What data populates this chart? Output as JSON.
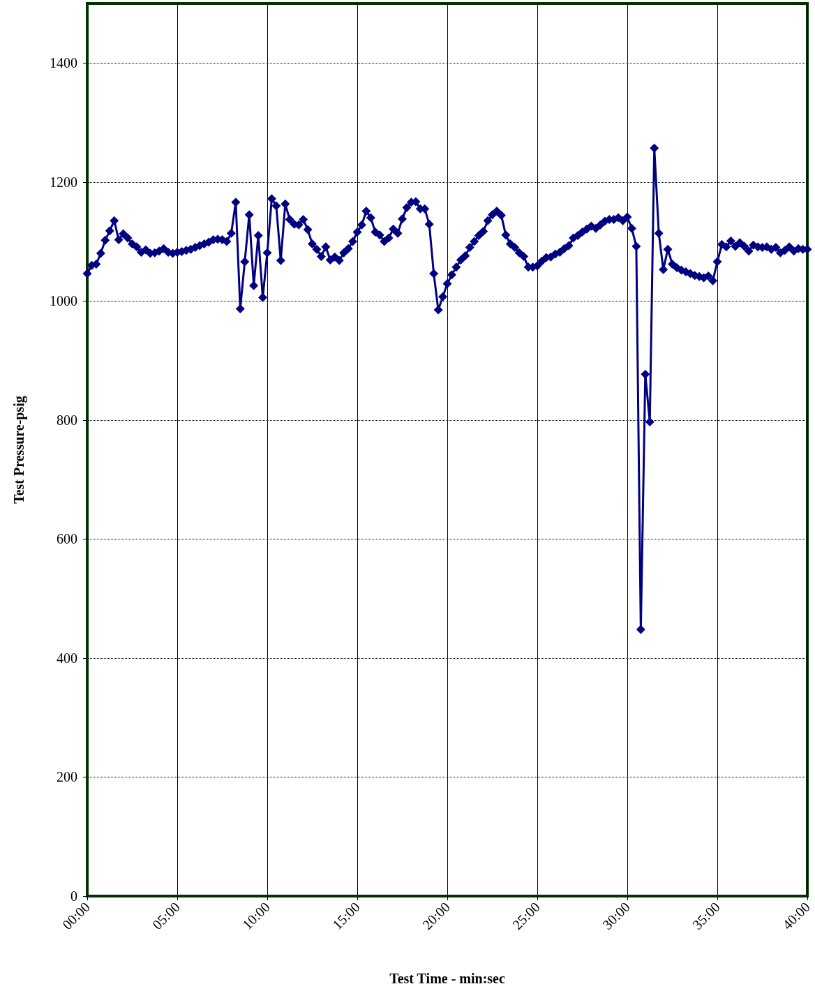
{
  "chart_data": {
    "type": "line",
    "xlabel": "Test Time - min:sec",
    "ylabel": "Test Pressure-psig",
    "xlim": [
      0,
      40
    ],
    "ylim": [
      0,
      1500
    ],
    "xticks": [
      {
        "value": 0,
        "label": "00:00"
      },
      {
        "value": 5,
        "label": "05:00"
      },
      {
        "value": 10,
        "label": "10:00"
      },
      {
        "value": 15,
        "label": "15:00"
      },
      {
        "value": 20,
        "label": "20:00"
      },
      {
        "value": 25,
        "label": "25:00"
      },
      {
        "value": 30,
        "label": "30:00"
      },
      {
        "value": 35,
        "label": "35:00"
      },
      {
        "value": 40,
        "label": "40:00"
      }
    ],
    "yticks": [
      0,
      200,
      400,
      600,
      800,
      1000,
      1200,
      1400
    ],
    "grid": true,
    "marker": "diamond",
    "line_style": "solid",
    "x": [
      0,
      0.25,
      0.5,
      0.75,
      1,
      1.25,
      1.5,
      1.75,
      2,
      2.25,
      2.5,
      2.75,
      3,
      3.25,
      3.5,
      3.75,
      4,
      4.25,
      4.5,
      4.75,
      5,
      5.25,
      5.5,
      5.75,
      6,
      6.25,
      6.5,
      6.75,
      7,
      7.25,
      7.5,
      7.75,
      8,
      8.25,
      8.5,
      8.75,
      9,
      9.25,
      9.5,
      9.75,
      10,
      10.25,
      10.5,
      10.75,
      11,
      11.25,
      11.5,
      11.75,
      12,
      12.25,
      12.5,
      12.75,
      13,
      13.25,
      13.5,
      13.75,
      14,
      14.25,
      14.5,
      14.75,
      15,
      15.25,
      15.5,
      15.75,
      16,
      16.25,
      16.5,
      16.75,
      17,
      17.25,
      17.5,
      17.75,
      18,
      18.25,
      18.5,
      18.75,
      19,
      19.25,
      19.5,
      19.75,
      20,
      20.25,
      20.5,
      20.75,
      21,
      21.25,
      21.5,
      21.75,
      22,
      22.25,
      22.5,
      22.75,
      23,
      23.25,
      23.5,
      23.75,
      24,
      24.25,
      24.5,
      24.75,
      25,
      25.25,
      25.5,
      25.75,
      26,
      26.25,
      26.5,
      26.75,
      27,
      27.25,
      27.5,
      27.75,
      28,
      28.25,
      28.5,
      28.75,
      29,
      29.25,
      29.5,
      29.75,
      30,
      30.25,
      30.5,
      30.75,
      31,
      31.25,
      31.5,
      31.75,
      32,
      32.25,
      32.5,
      32.75,
      33,
      33.25,
      33.5,
      33.75,
      34,
      34.25,
      34.5,
      34.75,
      35,
      35.25,
      35.5,
      35.75,
      36,
      36.25,
      36.5,
      36.75,
      37,
      37.25,
      37.5,
      37.75,
      38,
      38.25,
      38.5,
      38.75,
      39,
      39.25,
      39.5,
      39.75,
      40
    ],
    "series": [
      {
        "color": "#000080",
        "values": [
          1046,
          1060,
          1062,
          1080,
          1102,
          1118,
          1135,
          1103,
          1113,
          1106,
          1096,
          1091,
          1082,
          1086,
          1080,
          1081,
          1084,
          1088,
          1082,
          1080,
          1082,
          1083,
          1085,
          1087,
          1090,
          1093,
          1096,
          1099,
          1103,
          1104,
          1103,
          1100,
          1114,
          1166,
          987,
          1066,
          1145,
          1026,
          1110,
          1006,
          1081,
          1172,
          1160,
          1068,
          1163,
          1137,
          1129,
          1128,
          1137,
          1120,
          1096,
          1087,
          1075,
          1091,
          1069,
          1074,
          1068,
          1081,
          1088,
          1100,
          1116,
          1128,
          1151,
          1140,
          1116,
          1111,
          1100,
          1106,
          1121,
          1114,
          1138,
          1157,
          1166,
          1167,
          1155,
          1155,
          1129,
          1046,
          985,
          1007,
          1029,
          1044,
          1057,
          1069,
          1076,
          1090,
          1100,
          1110,
          1117,
          1135,
          1145,
          1151,
          1144,
          1111,
          1096,
          1090,
          1081,
          1075,
          1057,
          1057,
          1059,
          1067,
          1073,
          1074,
          1079,
          1082,
          1088,
          1093,
          1106,
          1110,
          1116,
          1121,
          1126,
          1122,
          1128,
          1134,
          1137,
          1137,
          1140,
          1135,
          1141,
          1122,
          1092,
          448,
          877,
          797,
          1257,
          1114,
          1053,
          1087,
          1062,
          1056,
          1052,
          1049,
          1046,
          1043,
          1041,
          1039,
          1042,
          1034,
          1066,
          1095,
          1091,
          1101,
          1092,
          1098,
          1092,
          1084,
          1094,
          1091,
          1090,
          1091,
          1087,
          1090,
          1081,
          1085,
          1091,
          1084,
          1088,
          1087,
          1087
        ]
      }
    ]
  }
}
